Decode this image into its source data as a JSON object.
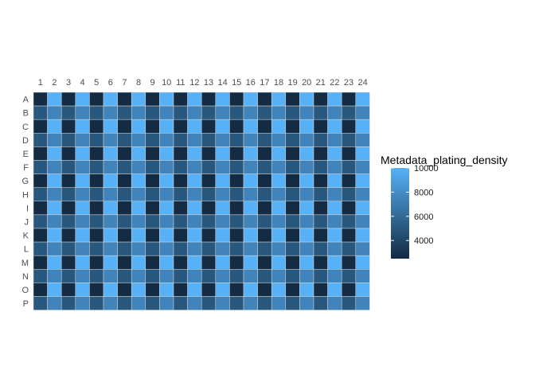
{
  "chart_data": {
    "type": "heatmap",
    "title": "",
    "xlabel": "",
    "ylabel": "",
    "columns": [
      "1",
      "2",
      "3",
      "4",
      "5",
      "6",
      "7",
      "8",
      "9",
      "10",
      "11",
      "12",
      "13",
      "14",
      "15",
      "16",
      "17",
      "18",
      "19",
      "20",
      "21",
      "22",
      "23",
      "24"
    ],
    "rows": [
      "A",
      "B",
      "C",
      "D",
      "E",
      "F",
      "G",
      "H",
      "I",
      "J",
      "K",
      "L",
      "M",
      "N",
      "O",
      "P"
    ],
    "fill_variable": "Metadata_plating_density",
    "color_range": [
      2500,
      10000
    ],
    "colors": {
      "low": "#132b43",
      "high": "#56b1f7",
      "cell_border": "#d9d9d9"
    },
    "pattern": {
      "description_values_by_row_parity_and_column_mod4": true,
      "odd_rows": {
        "col_mod4_1": 2500,
        "col_mod4_2": 10000,
        "col_mod4_3": 2500,
        "col_mod4_0": 10000
      },
      "even_rows": {
        "col_mod4_1": 5000,
        "col_mod4_2": 7500,
        "col_mod4_3": 5000,
        "col_mod4_0": 7500
      }
    },
    "values": [
      [
        2500,
        10000,
        2500,
        10000,
        2500,
        10000,
        2500,
        10000,
        2500,
        10000,
        2500,
        10000,
        2500,
        10000,
        2500,
        10000,
        2500,
        10000,
        2500,
        10000,
        2500,
        10000,
        2500,
        10000
      ],
      [
        5000,
        7500,
        5000,
        7500,
        5000,
        7500,
        5000,
        7500,
        5000,
        7500,
        5000,
        7500,
        5000,
        7500,
        5000,
        7500,
        5000,
        7500,
        5000,
        7500,
        5000,
        7500,
        5000,
        7500
      ],
      [
        2500,
        10000,
        2500,
        10000,
        2500,
        10000,
        2500,
        10000,
        2500,
        10000,
        2500,
        10000,
        2500,
        10000,
        2500,
        10000,
        2500,
        10000,
        2500,
        10000,
        2500,
        10000,
        2500,
        10000
      ],
      [
        5000,
        7500,
        5000,
        7500,
        5000,
        7500,
        5000,
        7500,
        5000,
        7500,
        5000,
        7500,
        5000,
        7500,
        5000,
        7500,
        5000,
        7500,
        5000,
        7500,
        5000,
        7500,
        5000,
        7500
      ],
      [
        2500,
        10000,
        2500,
        10000,
        2500,
        10000,
        2500,
        10000,
        2500,
        10000,
        2500,
        10000,
        2500,
        10000,
        2500,
        10000,
        2500,
        10000,
        2500,
        10000,
        2500,
        10000,
        2500,
        10000
      ],
      [
        5000,
        7500,
        5000,
        7500,
        5000,
        7500,
        5000,
        7500,
        5000,
        7500,
        5000,
        7500,
        5000,
        7500,
        5000,
        7500,
        5000,
        7500,
        5000,
        7500,
        5000,
        7500,
        5000,
        7500
      ],
      [
        2500,
        10000,
        2500,
        10000,
        2500,
        10000,
        2500,
        10000,
        2500,
        10000,
        2500,
        10000,
        2500,
        10000,
        2500,
        10000,
        2500,
        10000,
        2500,
        10000,
        2500,
        10000,
        2500,
        10000
      ],
      [
        5000,
        7500,
        5000,
        7500,
        5000,
        7500,
        5000,
        7500,
        5000,
        7500,
        5000,
        7500,
        5000,
        7500,
        5000,
        7500,
        5000,
        7500,
        5000,
        7500,
        5000,
        7500,
        5000,
        7500
      ],
      [
        2500,
        10000,
        2500,
        10000,
        2500,
        10000,
        2500,
        10000,
        2500,
        10000,
        2500,
        10000,
        2500,
        10000,
        2500,
        10000,
        2500,
        10000,
        2500,
        10000,
        2500,
        10000,
        2500,
        10000
      ],
      [
        5000,
        7500,
        5000,
        7500,
        5000,
        7500,
        5000,
        7500,
        5000,
        7500,
        5000,
        7500,
        5000,
        7500,
        5000,
        7500,
        5000,
        7500,
        5000,
        7500,
        5000,
        7500,
        5000,
        7500
      ],
      [
        2500,
        10000,
        2500,
        10000,
        2500,
        10000,
        2500,
        10000,
        2500,
        10000,
        2500,
        10000,
        2500,
        10000,
        2500,
        10000,
        2500,
        10000,
        2500,
        10000,
        2500,
        10000,
        2500,
        10000
      ],
      [
        5000,
        7500,
        5000,
        7500,
        5000,
        7500,
        5000,
        7500,
        5000,
        7500,
        5000,
        7500,
        5000,
        7500,
        5000,
        7500,
        5000,
        7500,
        5000,
        7500,
        5000,
        7500,
        5000,
        7500
      ],
      [
        2500,
        10000,
        2500,
        10000,
        2500,
        10000,
        2500,
        10000,
        2500,
        10000,
        2500,
        10000,
        2500,
        10000,
        2500,
        10000,
        2500,
        10000,
        2500,
        10000,
        2500,
        10000,
        2500,
        10000
      ],
      [
        5000,
        7500,
        5000,
        7500,
        5000,
        7500,
        5000,
        7500,
        5000,
        7500,
        5000,
        7500,
        5000,
        7500,
        5000,
        7500,
        5000,
        7500,
        5000,
        7500,
        5000,
        7500,
        5000,
        7500
      ],
      [
        2500,
        10000,
        2500,
        10000,
        2500,
        10000,
        2500,
        10000,
        2500,
        10000,
        2500,
        10000,
        2500,
        10000,
        2500,
        10000,
        2500,
        10000,
        2500,
        10000,
        2500,
        10000,
        2500,
        10000
      ],
      [
        5000,
        7500,
        5000,
        7500,
        5000,
        7500,
        5000,
        7500,
        5000,
        7500,
        5000,
        7500,
        5000,
        7500,
        5000,
        7500,
        5000,
        7500,
        5000,
        7500,
        5000,
        7500,
        5000,
        7500
      ]
    ],
    "legend": {
      "title": "Metadata_plating_density",
      "ticks": [
        4000,
        6000,
        8000,
        10000
      ],
      "tick_labels": [
        "4000",
        "6000",
        "8000",
        "10000"
      ],
      "placement": "right"
    }
  }
}
